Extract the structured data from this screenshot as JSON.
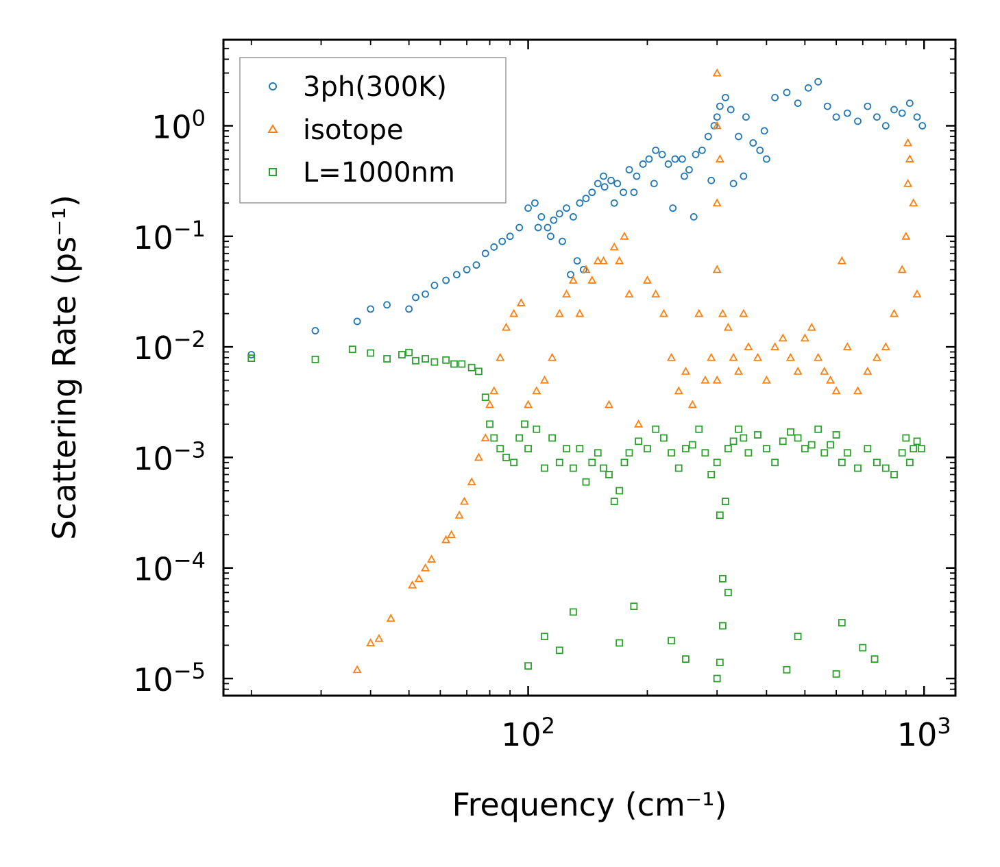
{
  "chart_data": {
    "type": "scatter",
    "xlabel": "Frequency (cm⁻¹)",
    "ylabel": "Scattering Rate (ps⁻¹)",
    "xscale": "log",
    "yscale": "log",
    "xlim": [
      17,
      1200
    ],
    "ylim": [
      7e-06,
      6
    ],
    "x_ticks": [
      {
        "value": 100,
        "base": "10",
        "exp": "2"
      },
      {
        "value": 1000,
        "base": "10",
        "exp": "3"
      }
    ],
    "y_ticks": [
      {
        "value": 1,
        "base": "10",
        "exp": "0"
      },
      {
        "value": 0.1,
        "base": "10",
        "exp": "−1"
      },
      {
        "value": 0.01,
        "base": "10",
        "exp": "−2"
      },
      {
        "value": 0.001,
        "base": "10",
        "exp": "−3"
      },
      {
        "value": 0.0001,
        "base": "10",
        "exp": "−4"
      },
      {
        "value": 1e-05,
        "base": "10",
        "exp": "−5"
      }
    ],
    "legend_position": "top-left",
    "series": [
      {
        "name": "3ph(300K)",
        "marker": "circle",
        "color": "#1f77b4",
        "x": [
          20,
          29,
          37,
          40,
          44,
          50,
          52,
          55,
          58,
          62,
          66,
          70,
          74,
          78,
          82,
          86,
          90,
          95,
          100,
          104,
          108,
          112,
          116,
          120,
          125,
          130,
          135,
          140,
          145,
          150,
          156,
          162,
          168,
          174,
          180,
          188,
          195,
          202,
          210,
          218,
          226,
          235,
          245,
          255,
          265,
          275,
          285,
          295,
          300,
          305,
          315,
          325,
          340,
          355,
          370,
          385,
          400,
          420,
          450,
          480,
          510,
          540,
          570,
          600,
          640,
          680,
          720,
          760,
          800,
          840,
          880,
          920,
          960,
          990,
          106,
          114,
          122,
          128,
          133,
          138,
          155,
          165,
          185,
          208,
          232,
          248,
          262,
          290,
          330,
          350,
          395
        ],
        "y": [
          0.0085,
          0.014,
          0.017,
          0.022,
          0.024,
          0.022,
          0.028,
          0.03,
          0.036,
          0.04,
          0.045,
          0.05,
          0.055,
          0.07,
          0.08,
          0.09,
          0.1,
          0.12,
          0.18,
          0.2,
          0.15,
          0.12,
          0.14,
          0.16,
          0.18,
          0.15,
          0.2,
          0.22,
          0.25,
          0.3,
          0.28,
          0.32,
          0.3,
          0.25,
          0.4,
          0.35,
          0.45,
          0.5,
          0.6,
          0.55,
          0.45,
          0.5,
          0.5,
          0.4,
          0.55,
          0.6,
          0.8,
          1.0,
          1.2,
          1.5,
          1.8,
          1.4,
          0.8,
          1.2,
          0.7,
          0.6,
          0.5,
          1.8,
          2.0,
          1.6,
          2.2,
          2.5,
          1.5,
          1.2,
          1.3,
          1.1,
          1.5,
          1.2,
          1.0,
          1.4,
          1.3,
          1.6,
          1.2,
          1.0,
          0.12,
          0.1,
          0.09,
          0.045,
          0.06,
          0.05,
          0.35,
          0.2,
          0.25,
          0.3,
          0.18,
          0.35,
          0.15,
          0.32,
          0.3,
          0.35,
          0.9
        ]
      },
      {
        "name": "isotope",
        "marker": "triangle",
        "color": "#ff7f0e",
        "x": [
          37,
          40,
          42,
          45,
          51,
          53,
          55,
          57,
          62,
          64,
          67,
          69,
          72,
          75,
          78,
          80,
          82,
          85,
          88,
          92,
          96,
          100,
          105,
          110,
          115,
          120,
          125,
          130,
          135,
          140,
          145,
          150,
          155,
          160,
          165,
          170,
          175,
          180,
          190,
          200,
          210,
          220,
          230,
          240,
          250,
          260,
          270,
          280,
          290,
          300,
          305,
          310,
          320,
          330,
          340,
          350,
          360,
          380,
          400,
          420,
          440,
          460,
          480,
          500,
          520,
          540,
          560,
          580,
          600,
          620,
          640,
          680,
          720,
          760,
          800,
          840,
          880,
          900,
          920,
          940,
          960,
          300,
          300,
          300,
          300,
          910,
          910
        ],
        "y": [
          1.2e-05,
          2.1e-05,
          2.3e-05,
          3.5e-05,
          7e-05,
          8e-05,
          0.0001,
          0.00012,
          0.00018,
          0.0002,
          0.0003,
          0.0004,
          0.0006,
          0.001,
          0.0015,
          0.003,
          0.004,
          0.008,
          0.015,
          0.02,
          0.025,
          0.003,
          0.004,
          0.005,
          0.008,
          0.02,
          0.03,
          0.04,
          0.02,
          0.05,
          0.04,
          0.06,
          0.06,
          0.003,
          0.08,
          0.06,
          0.1,
          0.03,
          0.002,
          0.04,
          0.03,
          0.02,
          0.008,
          0.004,
          0.006,
          0.003,
          0.02,
          0.005,
          0.008,
          0.05,
          0.5,
          0.02,
          0.015,
          0.008,
          0.006,
          0.02,
          0.01,
          0.008,
          0.005,
          0.01,
          0.012,
          0.008,
          0.006,
          0.012,
          0.015,
          0.008,
          0.006,
          0.005,
          0.004,
          0.06,
          0.01,
          0.004,
          0.006,
          0.008,
          0.01,
          0.02,
          0.05,
          0.1,
          0.5,
          0.2,
          0.03,
          3.0,
          1.0,
          0.2,
          0.005,
          0.7,
          0.3
        ]
      },
      {
        "name": "L=1000nm",
        "marker": "square",
        "color": "#2ca02c",
        "x": [
          20,
          29,
          36,
          40,
          44,
          48,
          50,
          52,
          55,
          58,
          62,
          65,
          68,
          72,
          75,
          78,
          80,
          82,
          85,
          88,
          92,
          95,
          98,
          100,
          105,
          110,
          115,
          120,
          125,
          130,
          135,
          140,
          145,
          150,
          155,
          160,
          165,
          170,
          175,
          180,
          190,
          200,
          210,
          220,
          230,
          240,
          250,
          260,
          270,
          280,
          290,
          300,
          305,
          310,
          315,
          320,
          330,
          340,
          350,
          360,
          380,
          400,
          420,
          440,
          460,
          480,
          500,
          520,
          540,
          560,
          580,
          600,
          620,
          640,
          680,
          720,
          760,
          800,
          840,
          880,
          900,
          920,
          940,
          960,
          985,
          100,
          110,
          120,
          130,
          170,
          185,
          230,
          250,
          300,
          305,
          310,
          320,
          450,
          480,
          600,
          620,
          700,
          750
        ],
        "y": [
          0.0079,
          0.0077,
          0.0095,
          0.0088,
          0.0078,
          0.0085,
          0.0089,
          0.0075,
          0.0078,
          0.0073,
          0.0076,
          0.007,
          0.007,
          0.0065,
          0.006,
          0.0035,
          0.002,
          0.0015,
          0.0012,
          0.001,
          0.0009,
          0.0015,
          0.002,
          0.0012,
          0.0018,
          0.0008,
          0.0015,
          0.0009,
          0.0012,
          0.0008,
          0.0012,
          0.0006,
          0.0009,
          0.0011,
          0.0008,
          0.0007,
          0.0004,
          0.0005,
          0.0009,
          0.0011,
          0.0014,
          0.0012,
          0.0018,
          0.0015,
          0.0011,
          0.0008,
          0.0012,
          0.0013,
          0.0018,
          0.0011,
          0.0007,
          0.0009,
          0.0003,
          8e-05,
          0.0004,
          0.0012,
          0.0014,
          0.0018,
          0.0015,
          0.0011,
          0.0016,
          0.0012,
          0.0009,
          0.0014,
          0.0017,
          0.0015,
          0.0012,
          0.0013,
          0.0018,
          0.0011,
          0.0013,
          0.0016,
          0.0009,
          0.0011,
          0.0008,
          0.0012,
          0.0009,
          0.0008,
          0.0007,
          0.0011,
          0.0015,
          0.0009,
          0.0012,
          0.0014,
          0.0012,
          1.3e-05,
          2.4e-05,
          1.8e-05,
          4e-05,
          2.1e-05,
          4.5e-05,
          2.2e-05,
          1.5e-05,
          1e-05,
          1.4e-05,
          3e-05,
          6e-05,
          1.2e-05,
          2.4e-05,
          1.1e-05,
          3.2e-05,
          1.9e-05,
          1.5e-05
        ]
      }
    ]
  }
}
